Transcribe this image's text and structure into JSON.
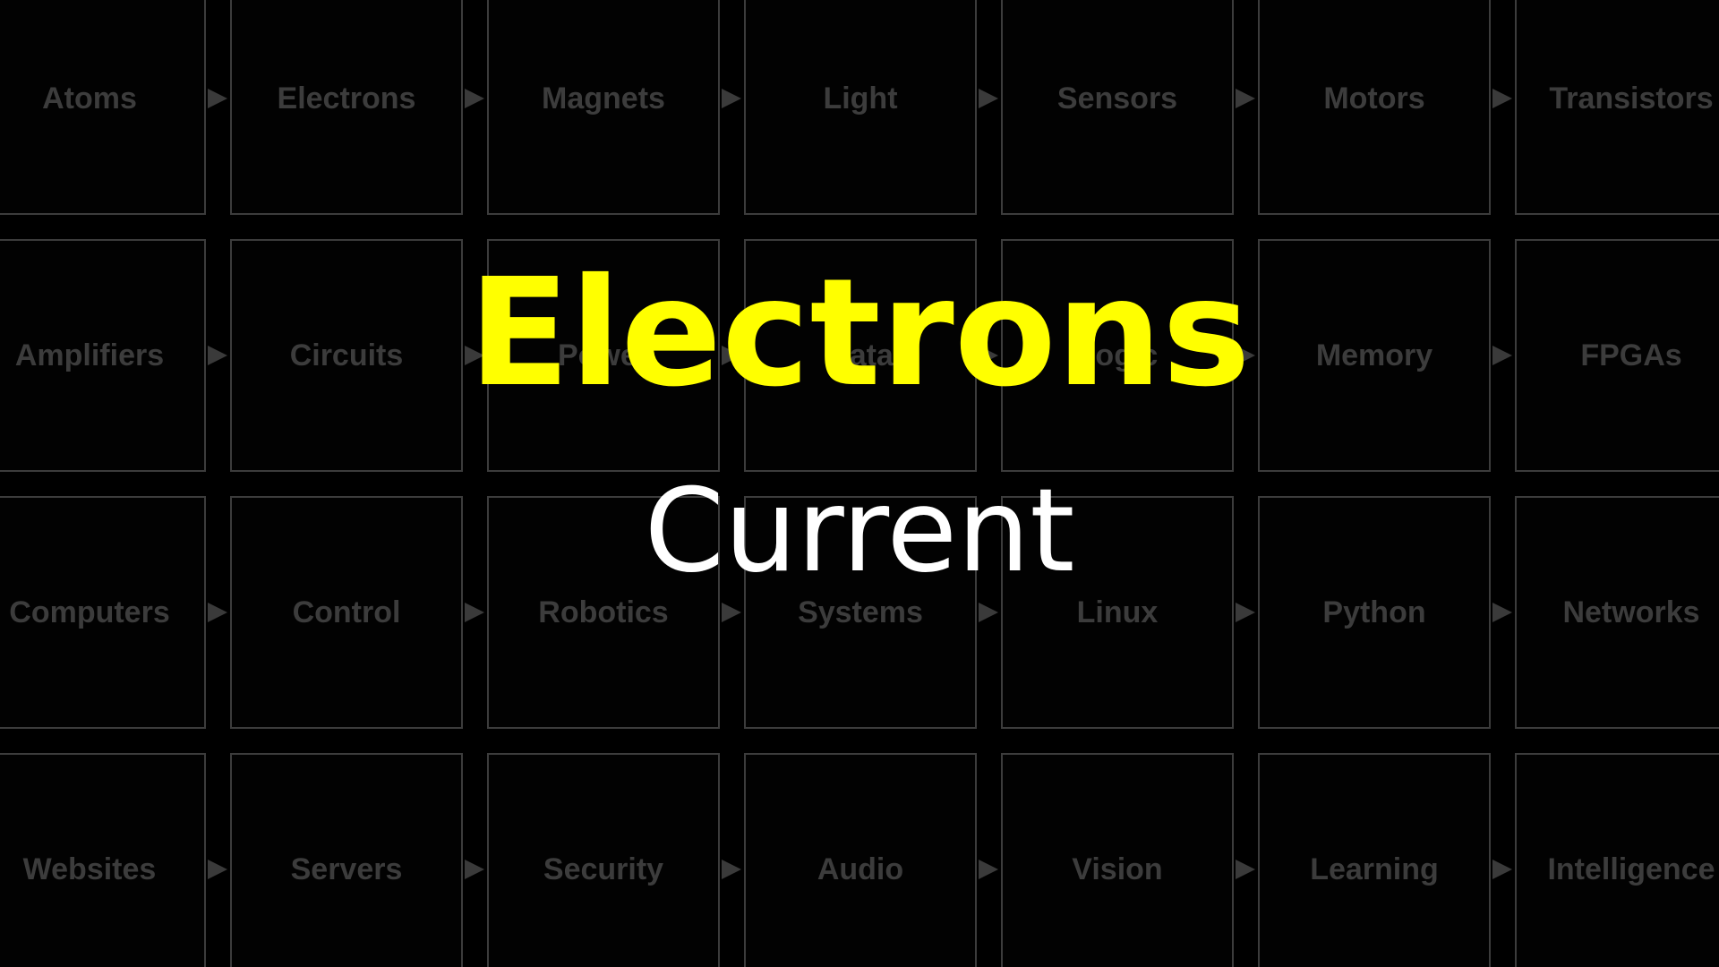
{
  "colors": {
    "background": "#000000",
    "tile_border": "#3c3c3c",
    "tile_text": "#3c3c3c",
    "title": "#ffff00",
    "subtitle": "#ffffff"
  },
  "title": "Electrons",
  "subtitle": "Current",
  "grid": {
    "rows": [
      [
        "Atoms",
        "Electrons",
        "Magnets",
        "Light",
        "Sensors",
        "Motors",
        "Transistors"
      ],
      [
        "Amplifiers",
        "Circuits",
        "Power",
        "Data",
        "Logic",
        "Memory",
        "FPGAs"
      ],
      [
        "Computers",
        "Control",
        "Robotics",
        "Systems",
        "Linux",
        "Python",
        "Networks"
      ],
      [
        "Websites",
        "Servers",
        "Security",
        "Audio",
        "Vision",
        "Learning",
        "Intelligence"
      ]
    ]
  }
}
